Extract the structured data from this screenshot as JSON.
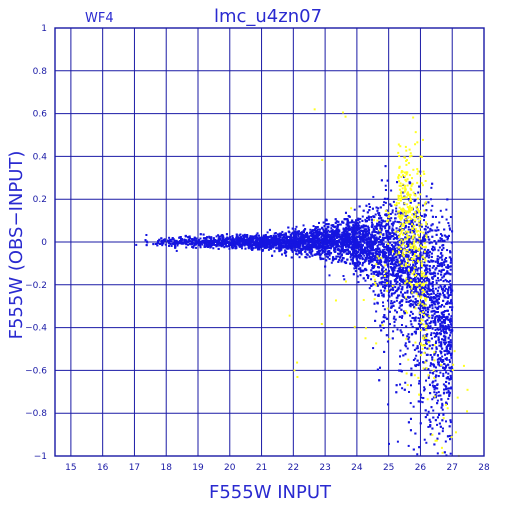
{
  "chart_data": {
    "type": "scatter",
    "panel_label": "WF4",
    "title": "lmc_u4zn07",
    "xlabel": "F555W INPUT",
    "ylabel": "F555W (OBS−INPUT)",
    "xlim": [
      14.5,
      28
    ],
    "ylim": [
      -1,
      1
    ],
    "x_ticks": [
      15,
      16,
      17,
      18,
      19,
      20,
      21,
      22,
      23,
      24,
      25,
      26,
      27,
      28
    ],
    "y_ticks": [
      1,
      0.8,
      0.6,
      0.4,
      0.2,
      0,
      -0.2,
      -0.4,
      -0.6,
      -0.8,
      -1
    ],
    "y_tick_labels": [
      "1",
      "0.8",
      "0.6",
      "0.4",
      "0.2",
      "0",
      "−0.2",
      "−0.4",
      "−0.6",
      "−0.8",
      "−1"
    ],
    "grid": true,
    "colors": {
      "frame": "#1a1aa6",
      "grid": "#1a1aa6",
      "text": "#2a2ad0"
    },
    "series": [
      {
        "color": "#1515e0",
        "approx_points": 7000,
        "description_of_shape": "dense tight band near 0 from x=17 widening to about +/-0.4 by x=25, broad spread toward negative values at x 25-27",
        "envelope": [
          {
            "x": 17.0,
            "median": 0.0,
            "spread": 0.02
          },
          {
            "x": 19.0,
            "median": 0.0,
            "spread": 0.02
          },
          {
            "x": 21.0,
            "median": 0.0,
            "spread": 0.03
          },
          {
            "x": 22.5,
            "median": 0.0,
            "spread": 0.05
          },
          {
            "x": 23.5,
            "median": 0.0,
            "spread": 0.08
          },
          {
            "x": 24.5,
            "median": -0.01,
            "spread": 0.13
          },
          {
            "x": 25.3,
            "median": -0.03,
            "spread": 0.22
          },
          {
            "x": 26.0,
            "median": -0.12,
            "spread": 0.3
          },
          {
            "x": 26.8,
            "median": -0.35,
            "spread": 0.35
          }
        ]
      },
      {
        "color": "#ffff20",
        "approx_points": 500,
        "description_of_shape": "concentrated around x 25.3-26.2, y -0.2 to +0.4, with scattered points toward y -1 up to x 27.5",
        "envelope": [
          {
            "x": 22.0,
            "median": -0.2,
            "spread": 0.3
          },
          {
            "x": 25.3,
            "median": 0.2,
            "spread": 0.2
          },
          {
            "x": 25.8,
            "median": 0.1,
            "spread": 0.25
          },
          {
            "x": 26.5,
            "median": -0.5,
            "spread": 0.4
          }
        ]
      }
    ]
  }
}
